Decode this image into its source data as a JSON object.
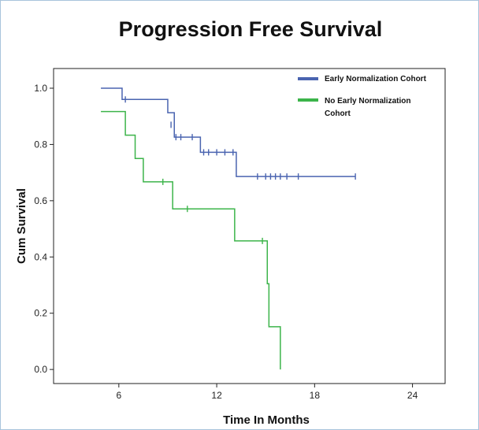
{
  "chart_data": {
    "type": "line",
    "title": "Progression Free Survival",
    "xlabel": "Time In Months",
    "ylabel": "Cum Survival",
    "xlim": [
      2,
      26
    ],
    "ylim": [
      -0.05,
      1.07
    ],
    "x_ticks": [
      6,
      12,
      18,
      24
    ],
    "y_ticks": [
      0.0,
      0.2,
      0.4,
      0.6,
      0.8,
      1.0
    ],
    "y_tick_labels": [
      "0.0",
      "0.2",
      "0.4",
      "0.6",
      "0.8",
      "1.0"
    ],
    "grid": false,
    "legend_position": "top-right",
    "series": [
      {
        "name": "Early Normalization Cohort",
        "color": "#4a64b0",
        "steps": [
          [
            4.9,
            1.0
          ],
          [
            6.2,
            0.96
          ],
          [
            9.0,
            0.913
          ],
          [
            9.4,
            0.826
          ],
          [
            11.0,
            0.772
          ],
          [
            13.2,
            0.686
          ],
          [
            20.5,
            0.686
          ]
        ],
        "censored": [
          [
            6.4,
            0.96
          ],
          [
            9.2,
            0.87
          ],
          [
            9.5,
            0.826
          ],
          [
            9.8,
            0.826
          ],
          [
            10.5,
            0.826
          ],
          [
            11.2,
            0.772
          ],
          [
            11.5,
            0.772
          ],
          [
            12.0,
            0.772
          ],
          [
            12.5,
            0.772
          ],
          [
            13.0,
            0.772
          ],
          [
            14.5,
            0.686
          ],
          [
            15.0,
            0.686
          ],
          [
            15.3,
            0.686
          ],
          [
            15.6,
            0.686
          ],
          [
            15.9,
            0.686
          ],
          [
            16.3,
            0.686
          ],
          [
            17.0,
            0.686
          ],
          [
            20.5,
            0.686
          ]
        ]
      },
      {
        "name": "No Early Normalization Cohort",
        "color": "#3cb44a",
        "steps": [
          [
            4.9,
            0.917
          ],
          [
            6.4,
            0.833
          ],
          [
            7.0,
            0.75
          ],
          [
            7.5,
            0.667
          ],
          [
            9.3,
            0.571
          ],
          [
            13.1,
            0.457
          ],
          [
            15.1,
            0.305
          ],
          [
            15.2,
            0.152
          ],
          [
            15.9,
            0.0
          ]
        ],
        "censored": [
          [
            8.7,
            0.667
          ],
          [
            10.2,
            0.571
          ],
          [
            14.8,
            0.457
          ]
        ]
      }
    ]
  }
}
